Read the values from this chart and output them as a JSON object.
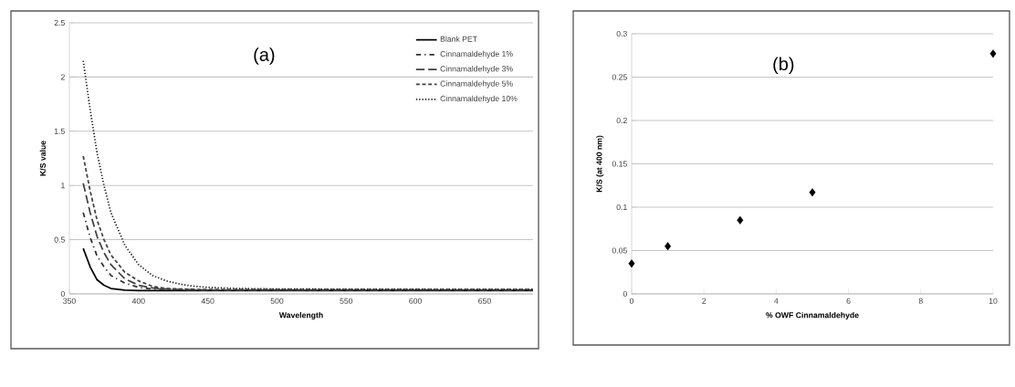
{
  "chart_data": [
    {
      "type": "line",
      "title": "(a)",
      "xlabel": "Wavelength",
      "ylabel": "K/S value",
      "xlim": [
        350,
        685
      ],
      "ylim": [
        0,
        2.5
      ],
      "xticks": [
        350,
        400,
        450,
        500,
        550,
        600,
        650
      ],
      "yticks": [
        0,
        0.5,
        1,
        1.5,
        2,
        2.5
      ],
      "grid": "y",
      "legend": "top right",
      "marker": "none",
      "series": [
        {
          "name": "Blank PET",
          "color": "#000000",
          "line_style": "solid",
          "x": [
            360,
            365,
            370,
            375,
            380,
            390,
            400,
            450,
            500,
            685
          ],
          "values": [
            0.42,
            0.25,
            0.13,
            0.08,
            0.05,
            0.035,
            0.03,
            0.03,
            0.03,
            0.03
          ]
        },
        {
          "name": "Cinnamaldehyde 1%",
          "color": "#303030",
          "line_style": "dashdot",
          "x": [
            360,
            365,
            370,
            375,
            380,
            390,
            400,
            410,
            420,
            450,
            500,
            685
          ],
          "values": [
            0.75,
            0.52,
            0.35,
            0.25,
            0.17,
            0.1,
            0.06,
            0.045,
            0.04,
            0.035,
            0.035,
            0.035
          ]
        },
        {
          "name": "Cinnamaldehyde 3%",
          "color": "#404040",
          "line_style": "longdash",
          "x": [
            360,
            365,
            370,
            375,
            380,
            390,
            400,
            410,
            420,
            430,
            450,
            500,
            685
          ],
          "values": [
            1.02,
            0.75,
            0.53,
            0.38,
            0.27,
            0.14,
            0.08,
            0.055,
            0.045,
            0.04,
            0.035,
            0.035,
            0.035
          ]
        },
        {
          "name": "Cinnamaldehyde 5%",
          "color": "#404040",
          "line_style": "dashed",
          "x": [
            360,
            365,
            370,
            375,
            380,
            390,
            400,
            410,
            420,
            430,
            450,
            500,
            685
          ],
          "values": [
            1.27,
            0.95,
            0.68,
            0.5,
            0.36,
            0.2,
            0.12,
            0.07,
            0.05,
            0.045,
            0.04,
            0.04,
            0.04
          ]
        },
        {
          "name": "Cinnamaldehyde 10%",
          "color": "#202020",
          "line_style": "dotted",
          "x": [
            360,
            365,
            370,
            375,
            380,
            390,
            400,
            410,
            420,
            430,
            440,
            450,
            470,
            500,
            685
          ],
          "values": [
            2.15,
            1.7,
            1.3,
            1.0,
            0.75,
            0.45,
            0.27,
            0.17,
            0.12,
            0.09,
            0.07,
            0.06,
            0.05,
            0.045,
            0.04
          ]
        }
      ]
    },
    {
      "type": "scatter",
      "title": "(b)",
      "xlabel": "% OWF  Cinnamaldehyde",
      "ylabel": "K/S  (at 400 nm)",
      "xlim": [
        0,
        10
      ],
      "ylim": [
        0,
        0.3
      ],
      "xticks": [
        0,
        2,
        4,
        6,
        8,
        10
      ],
      "yticks": [
        0,
        0.05,
        0.1,
        0.15,
        0.2,
        0.25,
        0.3
      ],
      "grid": "y",
      "marker": "diamond",
      "series": [
        {
          "color": "#000000",
          "x": [
            0,
            1,
            3,
            5,
            10
          ],
          "values": [
            0.035,
            0.055,
            0.085,
            0.117,
            0.277
          ]
        }
      ]
    }
  ]
}
